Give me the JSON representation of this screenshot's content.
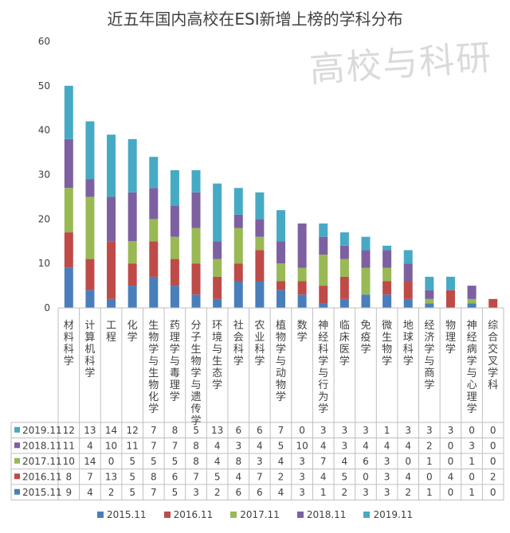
{
  "chart_data": {
    "type": "bar",
    "stacked": true,
    "title": "近五年国内高校在ESI新增上榜的学科分布",
    "watermark": "高校与科研",
    "ylim": [
      0,
      60
    ],
    "yticks": [
      0,
      10,
      20,
      30,
      40,
      50,
      60
    ],
    "categories": [
      "材料科学",
      "计算机科学",
      "工程",
      "化学",
      "生物学与生物化学",
      "药理学与毒理学",
      "分子生物学与遗传学",
      "环境与生态学",
      "社会科学",
      "农业科学",
      "植物学与动物学",
      "数学",
      "神经科学与行为学",
      "临床医学",
      "免疫学",
      "微生物学",
      "地球科学",
      "经济学与商学",
      "物理学",
      "神经病学与心理学",
      "综合交叉学科"
    ],
    "series": [
      {
        "name": "2015.11",
        "color": "#4a7ebb",
        "values": [
          9,
          4,
          2,
          5,
          7,
          5,
          3,
          2,
          6,
          6,
          4,
          3,
          1,
          2,
          3,
          3,
          2,
          1,
          0,
          1,
          0
        ]
      },
      {
        "name": "2016.11",
        "color": "#be4b48",
        "values": [
          8,
          7,
          13,
          5,
          8,
          6,
          7,
          5,
          4,
          7,
          2,
          3,
          4,
          5,
          0,
          3,
          4,
          0,
          4,
          0,
          2
        ]
      },
      {
        "name": "2017.11",
        "color": "#98b954",
        "values": [
          10,
          14,
          0,
          5,
          5,
          5,
          8,
          4,
          8,
          3,
          4,
          3,
          7,
          4,
          6,
          3,
          0,
          1,
          0,
          1,
          0
        ]
      },
      {
        "name": "2018.11",
        "color": "#7d60a0",
        "values": [
          11,
          4,
          10,
          11,
          7,
          7,
          8,
          4,
          3,
          4,
          5,
          10,
          4,
          3,
          4,
          4,
          4,
          2,
          0,
          3,
          0
        ]
      },
      {
        "name": "2019.11",
        "color": "#46aac5",
        "values": [
          12,
          13,
          14,
          12,
          7,
          8,
          5,
          13,
          6,
          6,
          7,
          0,
          3,
          3,
          3,
          1,
          3,
          3,
          3,
          0,
          0
        ]
      }
    ],
    "table_order": [
      "2019.11",
      "2018.11",
      "2017.11",
      "2016.11",
      "2015.11"
    ],
    "legend": [
      "2015.11",
      "2016.11",
      "2017.11",
      "2018.11",
      "2019.11"
    ],
    "grid": false,
    "legend_position": "bottom"
  }
}
